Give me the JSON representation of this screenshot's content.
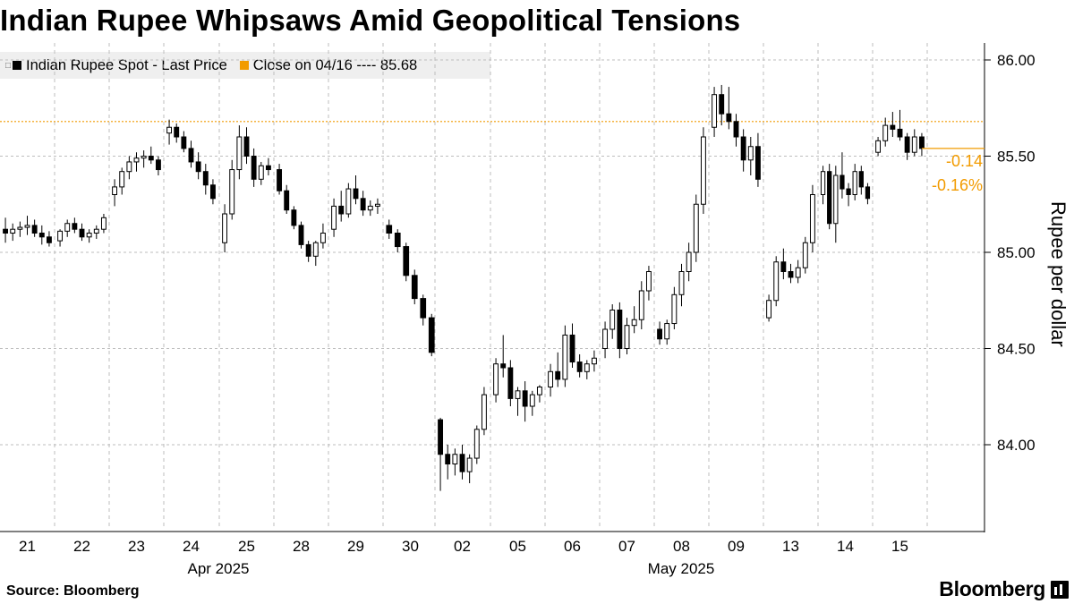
{
  "title": "Indian Rupee Whipsaws Amid Geopolitical Tensions",
  "legend": {
    "series_label": "Indian Rupee Spot - Last Price",
    "close_label": "Close on 04/16 ---- 85.68"
  },
  "source": "Source: Bloomberg",
  "brand": "Bloomberg",
  "colors": {
    "candle": "#000000",
    "reference": "#f29b00",
    "grid": "#bdbdbd"
  },
  "chart_data": {
    "type": "candlestick",
    "ylabel": "Rupee per dollar",
    "ylim": [
      83.7,
      86.15
    ],
    "y_ticks": [
      "86.00",
      "85.50",
      "85.00",
      "84.50",
      "84.00"
    ],
    "grid": true,
    "reference_line": {
      "label": "Close on 04/16",
      "value": 85.68
    },
    "last_value": 85.54,
    "change_labels": [
      "-0.14",
      "-0.16%"
    ],
    "x_day_labels": [
      "21",
      "22",
      "23",
      "24",
      "25",
      "28",
      "29",
      "30",
      "02",
      "05",
      "06",
      "07",
      "08",
      "09",
      "13",
      "14",
      "15"
    ],
    "x_month_labels": [
      "Apr 2025",
      "May 2025"
    ],
    "sessions": [
      {
        "day": "21",
        "ohlc": [
          [
            85.12,
            85.18,
            85.05,
            85.1
          ],
          [
            85.1,
            85.15,
            85.06,
            85.12
          ],
          [
            85.12,
            85.16,
            85.08,
            85.13
          ],
          [
            85.13,
            85.19,
            85.09,
            85.14
          ],
          [
            85.14,
            85.17,
            85.08,
            85.1
          ],
          [
            85.1,
            85.14,
            85.04,
            85.08
          ],
          [
            85.08,
            85.11,
            85.03,
            85.05
          ]
        ]
      },
      {
        "day": "22",
        "ohlc": [
          [
            85.06,
            85.12,
            85.03,
            85.11
          ],
          [
            85.11,
            85.17,
            85.08,
            85.15
          ],
          [
            85.15,
            85.18,
            85.1,
            85.12
          ],
          [
            85.12,
            85.15,
            85.06,
            85.08
          ],
          [
            85.08,
            85.12,
            85.05,
            85.1
          ],
          [
            85.1,
            85.14,
            85.07,
            85.12
          ],
          [
            85.12,
            85.2,
            85.1,
            85.18
          ]
        ]
      },
      {
        "day": "23",
        "ohlc": [
          [
            85.3,
            85.38,
            85.24,
            85.34
          ],
          [
            85.34,
            85.44,
            85.3,
            85.42
          ],
          [
            85.42,
            85.5,
            85.38,
            85.47
          ],
          [
            85.47,
            85.52,
            85.42,
            85.49
          ],
          [
            85.49,
            85.53,
            85.44,
            85.5
          ],
          [
            85.5,
            85.55,
            85.46,
            85.48
          ],
          [
            85.48,
            85.5,
            85.4,
            85.43
          ]
        ]
      },
      {
        "day": "24",
        "ohlc": [
          [
            85.62,
            85.69,
            85.56,
            85.65
          ],
          [
            85.65,
            85.67,
            85.57,
            85.6
          ],
          [
            85.6,
            85.63,
            85.52,
            85.54
          ],
          [
            85.54,
            85.58,
            85.44,
            85.47
          ],
          [
            85.47,
            85.52,
            85.38,
            85.42
          ],
          [
            85.42,
            85.46,
            85.3,
            85.35
          ],
          [
            85.35,
            85.38,
            85.25,
            85.28
          ]
        ]
      },
      {
        "day": "25",
        "ohlc": [
          [
            85.05,
            85.25,
            85.0,
            85.2
          ],
          [
            85.2,
            85.48,
            85.17,
            85.43
          ],
          [
            85.43,
            85.66,
            85.38,
            85.6
          ],
          [
            85.6,
            85.65,
            85.46,
            85.5
          ],
          [
            85.5,
            85.54,
            85.34,
            85.38
          ],
          [
            85.38,
            85.47,
            85.35,
            85.45
          ],
          [
            85.45,
            85.49,
            85.4,
            85.43
          ]
        ]
      },
      {
        "day": "28",
        "ohlc": [
          [
            85.43,
            85.46,
            85.3,
            85.32
          ],
          [
            85.32,
            85.35,
            85.2,
            85.22
          ],
          [
            85.22,
            85.24,
            85.12,
            85.14
          ],
          [
            85.14,
            85.16,
            85.02,
            85.04
          ],
          [
            85.04,
            85.06,
            84.95,
            84.98
          ],
          [
            84.98,
            85.06,
            84.93,
            85.05
          ],
          [
            85.05,
            85.15,
            85.02,
            85.1
          ]
        ]
      },
      {
        "day": "29",
        "ohlc": [
          [
            85.12,
            85.28,
            85.08,
            85.24
          ],
          [
            85.24,
            85.32,
            85.16,
            85.2
          ],
          [
            85.2,
            85.36,
            85.18,
            85.33
          ],
          [
            85.33,
            85.4,
            85.25,
            85.28
          ],
          [
            85.28,
            85.32,
            85.19,
            85.22
          ],
          [
            85.22,
            85.27,
            85.19,
            85.24
          ],
          [
            85.24,
            85.28,
            85.2,
            85.25
          ]
        ]
      },
      {
        "day": "30",
        "ohlc": [
          [
            85.14,
            85.17,
            85.07,
            85.1
          ],
          [
            85.1,
            85.12,
            85.0,
            85.03
          ],
          [
            85.03,
            85.05,
            84.85,
            84.88
          ],
          [
            84.88,
            84.91,
            84.73,
            84.76
          ],
          [
            84.76,
            84.78,
            84.62,
            84.66
          ],
          [
            84.66,
            84.68,
            84.46,
            84.48
          ]
        ]
      },
      {
        "day": "02",
        "ohlc": [
          [
            84.13,
            84.14,
            83.76,
            83.95
          ],
          [
            83.95,
            84.0,
            83.82,
            83.9
          ],
          [
            83.9,
            83.98,
            83.84,
            83.95
          ],
          [
            83.95,
            84.0,
            83.82,
            83.86
          ],
          [
            83.86,
            83.95,
            83.8,
            83.93
          ],
          [
            83.93,
            84.1,
            83.9,
            84.08
          ],
          [
            84.08,
            84.3,
            84.05,
            84.26
          ]
        ]
      },
      {
        "day": "05",
        "ohlc": [
          [
            84.26,
            84.45,
            84.22,
            84.42
          ],
          [
            84.42,
            84.57,
            84.35,
            84.4
          ],
          [
            84.4,
            84.44,
            84.2,
            84.24
          ],
          [
            84.24,
            84.3,
            84.15,
            84.28
          ],
          [
            84.28,
            84.33,
            84.12,
            84.2
          ],
          [
            84.2,
            84.28,
            84.15,
            84.26
          ],
          [
            84.26,
            84.31,
            84.22,
            84.3
          ]
        ]
      },
      {
        "day": "06",
        "ohlc": [
          [
            84.3,
            84.42,
            84.25,
            84.38
          ],
          [
            84.38,
            84.48,
            84.3,
            84.34
          ],
          [
            84.34,
            84.62,
            84.3,
            84.57
          ],
          [
            84.57,
            84.63,
            84.4,
            84.43
          ],
          [
            84.43,
            84.47,
            84.35,
            84.38
          ],
          [
            84.38,
            84.44,
            84.34,
            84.42
          ],
          [
            84.42,
            84.49,
            84.38,
            84.45
          ]
        ]
      },
      {
        "day": "07",
        "ohlc": [
          [
            84.5,
            84.64,
            84.45,
            84.6
          ],
          [
            84.6,
            84.73,
            84.55,
            84.7
          ],
          [
            84.7,
            84.74,
            84.45,
            84.5
          ],
          [
            84.5,
            84.66,
            84.47,
            84.62
          ],
          [
            84.62,
            84.72,
            84.58,
            84.65
          ],
          [
            84.65,
            84.85,
            84.6,
            84.8
          ],
          [
            84.8,
            84.93,
            84.75,
            84.9
          ]
        ]
      },
      {
        "day": "08",
        "ohlc": [
          [
            84.6,
            84.64,
            84.52,
            84.55
          ],
          [
            84.55,
            84.65,
            84.52,
            84.63
          ],
          [
            84.63,
            84.82,
            84.6,
            84.78
          ],
          [
            84.78,
            84.94,
            84.72,
            84.9
          ],
          [
            84.9,
            85.05,
            84.85,
            85.0
          ],
          [
            85.0,
            85.3,
            84.95,
            85.25
          ],
          [
            85.25,
            85.65,
            85.2,
            85.6
          ]
        ]
      },
      {
        "day": "09",
        "ohlc": [
          [
            85.65,
            85.86,
            85.6,
            85.82
          ],
          [
            85.82,
            85.87,
            85.66,
            85.72
          ],
          [
            85.72,
            85.86,
            85.64,
            85.68
          ],
          [
            85.68,
            85.72,
            85.55,
            85.6
          ],
          [
            85.6,
            85.64,
            85.42,
            85.48
          ],
          [
            85.48,
            85.6,
            85.4,
            85.55
          ],
          [
            85.55,
            85.62,
            85.34,
            85.38
          ]
        ]
      },
      {
        "day": "13",
        "ohlc": [
          [
            84.66,
            84.78,
            84.64,
            84.75
          ],
          [
            84.75,
            84.98,
            84.72,
            84.95
          ],
          [
            84.95,
            85.02,
            84.86,
            84.9
          ],
          [
            84.9,
            84.94,
            84.84,
            84.87
          ],
          [
            84.87,
            84.96,
            84.84,
            84.92
          ],
          [
            84.92,
            85.08,
            84.89,
            85.05
          ],
          [
            85.05,
            85.35,
            85.0,
            85.3
          ]
        ]
      },
      {
        "day": "14",
        "ohlc": [
          [
            85.3,
            85.45,
            85.25,
            85.42
          ],
          [
            85.42,
            85.46,
            85.12,
            85.15
          ],
          [
            85.15,
            85.45,
            85.05,
            85.4
          ],
          [
            85.4,
            85.52,
            85.28,
            85.33
          ],
          [
            85.33,
            85.36,
            85.24,
            85.3
          ],
          [
            85.3,
            85.46,
            85.27,
            85.42
          ],
          [
            85.42,
            85.45,
            85.3,
            85.34
          ],
          [
            85.34,
            85.36,
            85.25,
            85.28
          ]
        ]
      },
      {
        "day": "15",
        "ohlc": [
          [
            85.52,
            85.6,
            85.5,
            85.58
          ],
          [
            85.58,
            85.7,
            85.55,
            85.66
          ],
          [
            85.66,
            85.73,
            85.6,
            85.64
          ],
          [
            85.64,
            85.74,
            85.58,
            85.6
          ],
          [
            85.6,
            85.62,
            85.48,
            85.52
          ],
          [
            85.52,
            85.64,
            85.5,
            85.6
          ],
          [
            85.6,
            85.62,
            85.5,
            85.54
          ]
        ]
      }
    ]
  }
}
